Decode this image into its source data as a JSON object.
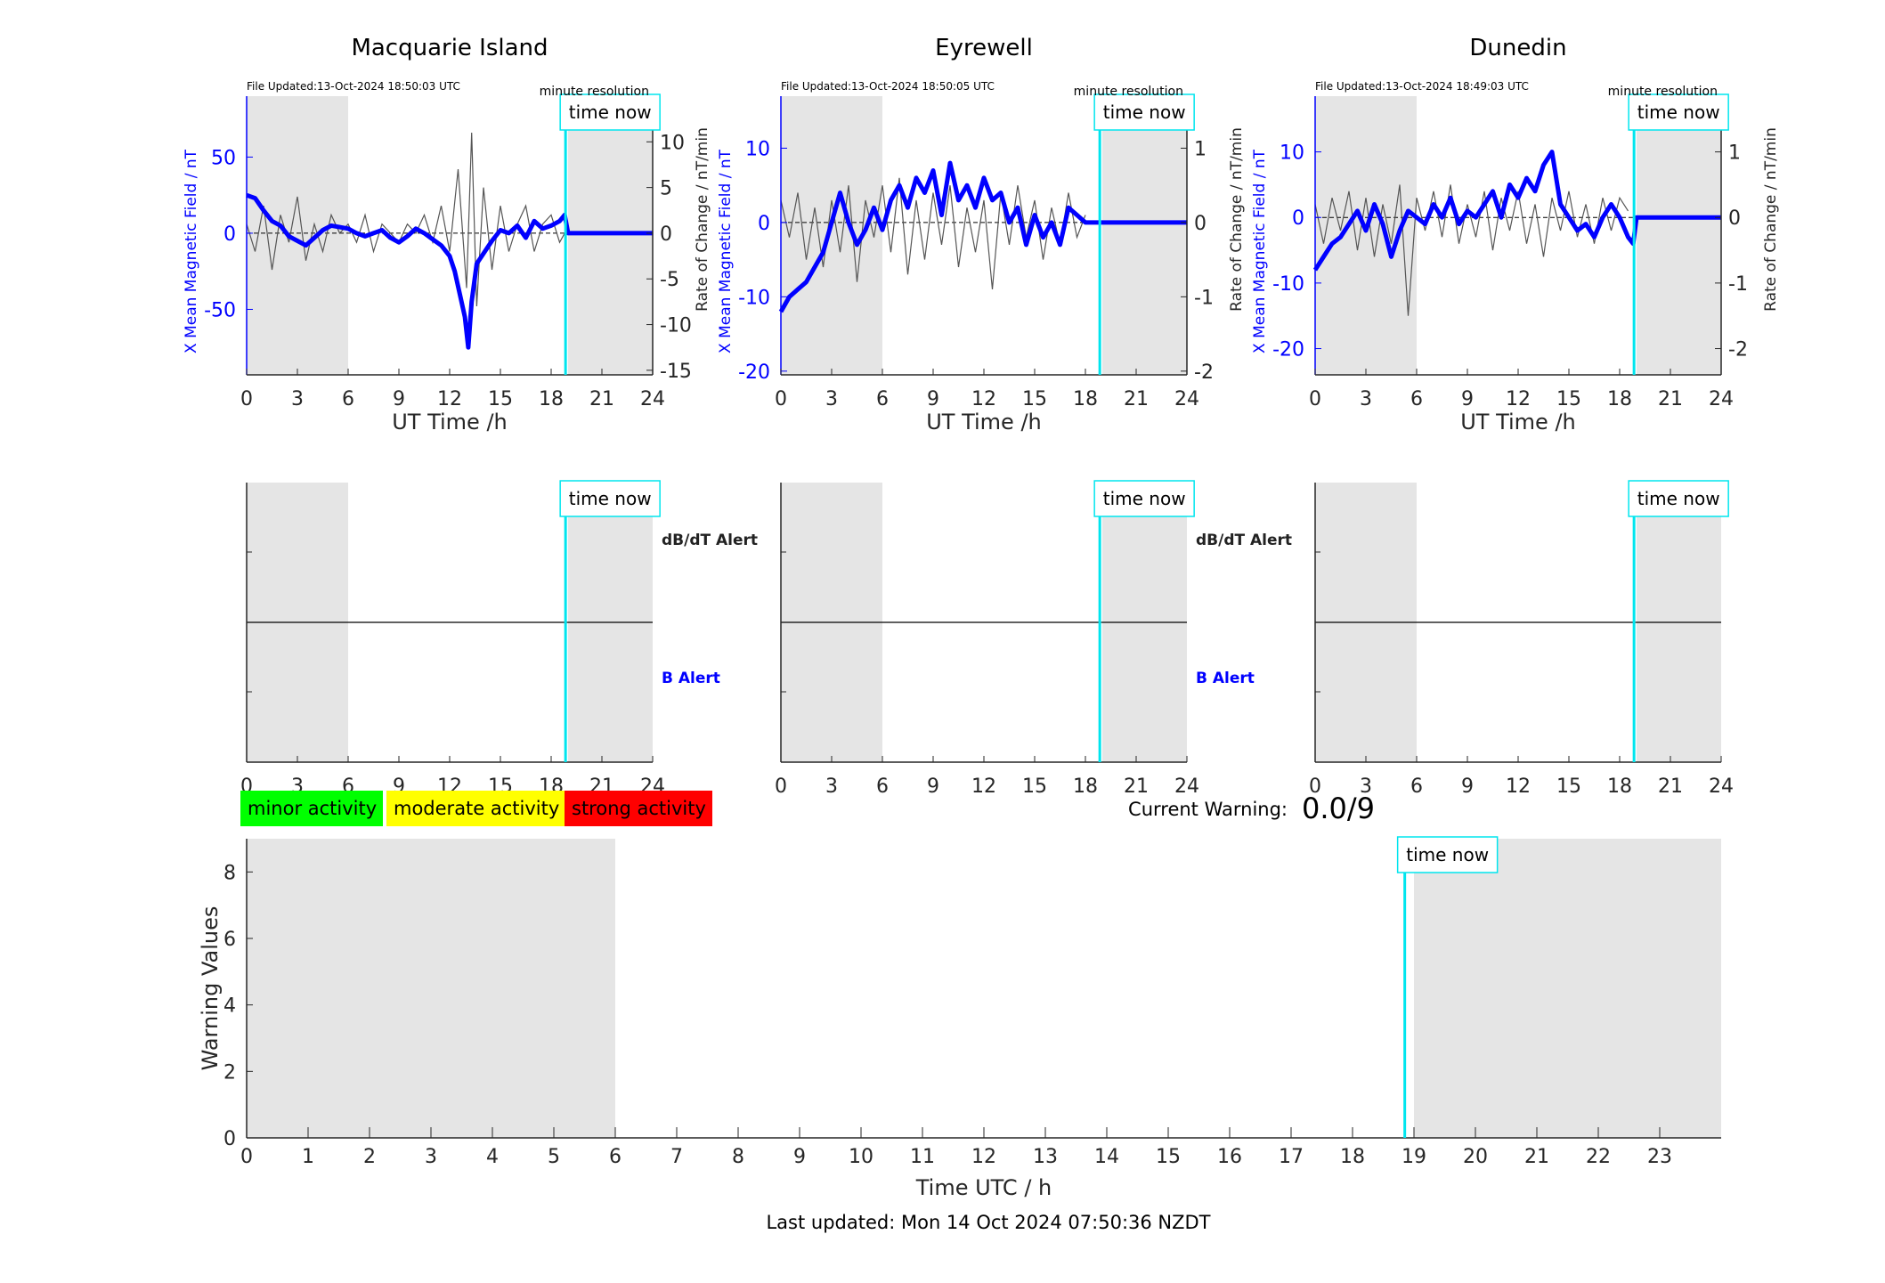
{
  "footer": "Last updated: Mon 14 Oct 2024 07:50:36 NZDT",
  "current_warning_label": "Current Warning:",
  "current_warning_value": "0.0/9",
  "legend": [
    {
      "label": "minor activity",
      "color": "#00ff00"
    },
    {
      "label": "moderate activity",
      "color": "#ffff00"
    },
    {
      "label": "strong activity",
      "color": "#ff0000"
    }
  ],
  "time_now_label": "time now",
  "resolution_label": "minute resolution",
  "colors": {
    "field": "#0000ff",
    "rate": "#555555",
    "night": "#e5e5e5",
    "now": "#00e5ee"
  },
  "chart_data": [
    {
      "type": "line",
      "station": "Macquarie Island",
      "title": "Macquarie Island",
      "file_updated": "File Updated:13-Oct-2024 18:50:03 UTC",
      "xlabel": "UT Time /h",
      "xlim": [
        0,
        24
      ],
      "xticks": [
        0,
        3,
        6,
        9,
        12,
        15,
        18,
        21,
        24
      ],
      "ylabel": "X Mean Magnetic Field / nT",
      "ylim": [
        -93,
        90
      ],
      "yticks": [
        -50,
        0,
        50
      ],
      "y2label": "Rate of Change / nT/min",
      "y2lim": [
        -15.5,
        15
      ],
      "y2ticks": [
        -15,
        -10,
        -5,
        0,
        5,
        10
      ],
      "night_bands": [
        [
          0,
          6
        ],
        [
          19,
          24
        ]
      ],
      "time_now": 18.85,
      "field_series": {
        "x": [
          0,
          0.5,
          1,
          1.5,
          2,
          2.5,
          3,
          3.5,
          4,
          4.5,
          5,
          5.5,
          6,
          6.5,
          7,
          7.5,
          8,
          8.5,
          9,
          9.5,
          10,
          10.5,
          11,
          11.5,
          12,
          12.3,
          12.6,
          12.9,
          13.1,
          13.3,
          13.6,
          13.9,
          14.2,
          14.5,
          15,
          15.5,
          16,
          16.5,
          17,
          17.5,
          18,
          18.5,
          18.8,
          19,
          20,
          21,
          22,
          23,
          24
        ],
        "y": [
          25,
          23,
          15,
          8,
          5,
          -2,
          -5,
          -8,
          -3,
          2,
          5,
          4,
          3,
          0,
          -2,
          0,
          2,
          -3,
          -6,
          -2,
          3,
          0,
          -4,
          -8,
          -15,
          -25,
          -40,
          -55,
          -75,
          -45,
          -20,
          -15,
          -10,
          -5,
          2,
          0,
          5,
          -3,
          8,
          3,
          5,
          8,
          12,
          0,
          0,
          0,
          0,
          0,
          0
        ]
      },
      "rate_series": {
        "x": [
          0,
          0.5,
          1,
          1.5,
          2,
          2.5,
          3,
          3.5,
          4,
          4.5,
          5,
          5.5,
          6,
          6.5,
          7,
          7.5,
          8,
          8.5,
          9,
          9.5,
          10,
          10.5,
          11,
          11.5,
          12,
          12.5,
          13,
          13.3,
          13.6,
          14,
          14.5,
          15,
          15.5,
          16,
          16.5,
          17,
          17.5,
          18,
          18.5,
          18.8
        ],
        "y": [
          1,
          -2,
          3,
          -4,
          2,
          -1,
          4,
          -3,
          1,
          -2,
          2,
          0,
          1,
          -1,
          2,
          -2,
          1,
          0,
          -1,
          1,
          0,
          2,
          -1,
          3,
          -2,
          7,
          -6,
          11,
          -8,
          5,
          -4,
          3,
          -2,
          1,
          3,
          -2,
          1,
          2,
          -1,
          0
        ]
      }
    },
    {
      "type": "line",
      "station": "Eyrewell",
      "title": "Eyrewell",
      "file_updated": "File Updated:13-Oct-2024 18:50:05 UTC",
      "xlabel": "UT Time /h",
      "xlim": [
        0,
        24
      ],
      "xticks": [
        0,
        3,
        6,
        9,
        12,
        15,
        18,
        21,
        24
      ],
      "ylabel": "X Mean Magnetic Field / nT",
      "ylim": [
        -20.5,
        17
      ],
      "yticks": [
        -20,
        -10,
        0,
        10
      ],
      "y2label": "Rate of Change / nT/min",
      "y2lim": [
        -2.05,
        1.7
      ],
      "y2ticks": [
        -2,
        -1,
        0,
        1
      ],
      "night_bands": [
        [
          0,
          6
        ],
        [
          19,
          24
        ]
      ],
      "time_now": 18.85,
      "field_series": {
        "x": [
          0,
          0.5,
          1,
          1.5,
          2,
          2.5,
          3,
          3.5,
          4,
          4.5,
          5,
          5.5,
          6,
          6.5,
          7,
          7.5,
          8,
          8.5,
          9,
          9.5,
          10,
          10.5,
          11,
          11.5,
          12,
          12.5,
          13,
          13.5,
          14,
          14.5,
          15,
          15.5,
          16,
          16.5,
          17,
          17.5,
          18,
          18.5,
          18.8,
          19,
          20,
          21,
          22,
          23,
          24
        ],
        "y": [
          -12,
          -10,
          -9,
          -8,
          -6,
          -4,
          0,
          4,
          0,
          -3,
          -1,
          2,
          -1,
          3,
          5,
          2,
          6,
          4,
          7,
          1,
          8,
          3,
          5,
          2,
          6,
          3,
          4,
          0,
          2,
          -3,
          1,
          -2,
          0,
          -3,
          2,
          1,
          0,
          0,
          0,
          0,
          0,
          0,
          0,
          0,
          0
        ]
      },
      "rate_series": {
        "x": [
          0,
          0.5,
          1,
          1.5,
          2,
          2.5,
          3,
          3.5,
          4,
          4.5,
          5,
          5.5,
          6,
          6.5,
          7,
          7.5,
          8,
          8.5,
          9,
          9.5,
          10,
          10.5,
          11,
          11.5,
          12,
          12.5,
          13,
          13.5,
          14,
          14.5,
          15,
          15.5,
          16,
          16.5,
          17,
          17.5,
          18
        ],
        "y": [
          0.3,
          -0.2,
          0.4,
          -0.5,
          0.2,
          -0.6,
          0.3,
          -0.4,
          0.5,
          -0.8,
          0.3,
          -0.2,
          0.5,
          -0.4,
          0.6,
          -0.7,
          0.3,
          -0.5,
          0.4,
          -0.3,
          0.5,
          -0.6,
          0.2,
          -0.4,
          0.3,
          -0.9,
          0.4,
          -0.3,
          0.5,
          -0.2,
          0.3,
          -0.5,
          0.2,
          -0.3,
          0.4,
          -0.2,
          0.1
        ]
      }
    },
    {
      "type": "line",
      "station": "Dunedin",
      "title": "Dunedin",
      "file_updated": "File Updated:13-Oct-2024 18:49:03 UTC",
      "xlabel": "UT Time /h",
      "xlim": [
        0,
        24
      ],
      "xticks": [
        0,
        3,
        6,
        9,
        12,
        15,
        18,
        21,
        24
      ],
      "ylabel": "X Mean Magnetic Field / nT",
      "ylim": [
        -24,
        18.5
      ],
      "yticks": [
        -20,
        -10,
        0,
        10
      ],
      "y2label": "Rate of Change / nT/min",
      "y2lim": [
        -2.4,
        1.85
      ],
      "y2ticks": [
        -2,
        -1,
        0,
        1
      ],
      "night_bands": [
        [
          0,
          6
        ],
        [
          19,
          24
        ]
      ],
      "time_now": 18.85,
      "field_series": {
        "x": [
          0,
          0.5,
          1,
          1.5,
          2,
          2.5,
          3,
          3.5,
          4,
          4.5,
          5,
          5.5,
          6,
          6.5,
          7,
          7.5,
          8,
          8.5,
          9,
          9.5,
          10,
          10.5,
          11,
          11.5,
          12,
          12.5,
          13,
          13.5,
          14,
          14.5,
          15,
          15.5,
          16,
          16.5,
          17,
          17.5,
          18,
          18.5,
          18.8,
          19,
          20,
          21,
          22,
          23,
          24
        ],
        "y": [
          -8,
          -6,
          -4,
          -3,
          -1,
          1,
          -2,
          2,
          -1,
          -6,
          -2,
          1,
          0,
          -1,
          2,
          0,
          3,
          -1,
          1,
          0,
          2,
          4,
          0,
          5,
          3,
          6,
          4,
          8,
          10,
          2,
          0,
          -2,
          -1,
          -3,
          0,
          2,
          0,
          -3,
          -4,
          0,
          0,
          0,
          0,
          0,
          0
        ]
      },
      "rate_series": {
        "x": [
          0,
          0.5,
          1,
          1.5,
          2,
          2.5,
          3,
          3.5,
          4,
          4.5,
          5,
          5.5,
          6,
          6.5,
          7,
          7.5,
          8,
          8.5,
          9,
          9.5,
          10,
          10.5,
          11,
          11.5,
          12,
          12.5,
          13,
          13.5,
          14,
          14.5,
          15,
          15.5,
          16,
          16.5,
          17,
          17.5,
          18,
          18.5
        ],
        "y": [
          0.2,
          -0.4,
          0.3,
          -0.2,
          0.4,
          -0.5,
          0.3,
          -0.6,
          0.2,
          -0.4,
          0.5,
          -1.5,
          0.3,
          -0.2,
          0.4,
          -0.3,
          0.5,
          -0.4,
          0.2,
          -0.3,
          0.4,
          -0.5,
          0.3,
          -0.2,
          0.4,
          -0.4,
          0.2,
          -0.6,
          0.3,
          -0.2,
          0.4,
          -0.3,
          0.2,
          -0.4,
          0.3,
          -0.2,
          0.3,
          0.1
        ]
      }
    },
    {
      "type": "line",
      "title": "",
      "alert_top": "dB/dT Alert",
      "alert_bottom": "B Alert",
      "xlim": [
        0,
        24
      ],
      "xticks": [
        0,
        3,
        6,
        9,
        12,
        15,
        18,
        21,
        24
      ],
      "night_bands": [
        [
          0,
          6
        ],
        [
          19,
          24
        ]
      ],
      "time_now": 18.85
    },
    {
      "type": "line",
      "title": "",
      "alert_top": "dB/dT Alert",
      "alert_bottom": "B Alert",
      "xlim": [
        0,
        24
      ],
      "xticks": [
        0,
        3,
        6,
        9,
        12,
        15,
        18,
        21,
        24
      ],
      "night_bands": [
        [
          0,
          6
        ],
        [
          19,
          24
        ]
      ],
      "time_now": 18.85
    },
    {
      "type": "line",
      "title": "",
      "xlim": [
        0,
        24
      ],
      "xticks": [
        0,
        3,
        6,
        9,
        12,
        15,
        18,
        21,
        24
      ],
      "night_bands": [
        [
          0,
          6
        ],
        [
          19,
          24
        ]
      ],
      "time_now": 18.85
    },
    {
      "type": "bar",
      "title": "",
      "xlabel": "Time UTC / h",
      "ylabel": "Warning Values",
      "xlim": [
        0,
        24
      ],
      "ylim": [
        0,
        9
      ],
      "yticks": [
        0,
        2,
        4,
        6,
        8
      ],
      "xticks": [
        0,
        1,
        2,
        3,
        4,
        5,
        6,
        7,
        8,
        9,
        10,
        11,
        12,
        13,
        14,
        15,
        16,
        17,
        18,
        19,
        20,
        21,
        22,
        23
      ],
      "night_bands": [
        [
          0,
          6
        ],
        [
          19,
          24
        ]
      ],
      "time_now": 18.85,
      "values": []
    }
  ]
}
